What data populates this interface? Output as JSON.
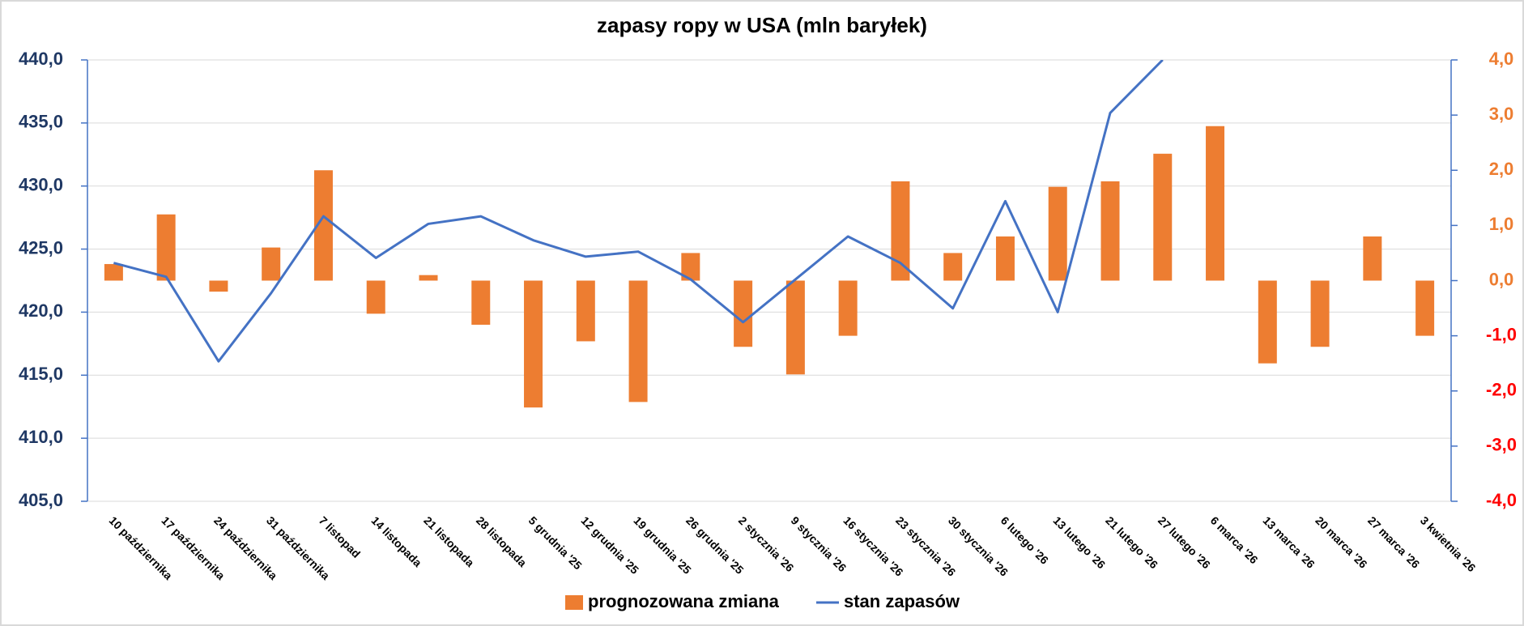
{
  "chart_data": {
    "type": "bar_line",
    "title": "zapasy ropy w USA (mln baryłek)",
    "categories": [
      "10 października",
      "17 października",
      "24 października",
      "31 października",
      "7 listopad",
      "14 listopada",
      "21 listopada",
      "28 listopada",
      "5 grudnia '25",
      "12 grudnia '25",
      "19 grudnia '25",
      "26 grudnia '25",
      "2 stycznia '26",
      "9 stycznia '26",
      "16 stycznia '26",
      "23 stycznia '26",
      "30 stycznia '26",
      "6 lutego '26",
      "13 lutego '26",
      "21 lutego '26",
      "27 lutego '26",
      "6 marca '26",
      "13 marca '26",
      "20 marca '26",
      "27 marca '26",
      "3 kwietnia '26"
    ],
    "series": [
      {
        "name": "prognozowana zmiana",
        "type": "bar",
        "axis": "y2",
        "color": "#ed7d31",
        "values": [
          0.3,
          1.2,
          -0.2,
          0.6,
          2.0,
          -0.6,
          0.1,
          -0.8,
          -2.3,
          -1.1,
          -2.2,
          0.5,
          -1.2,
          -1.7,
          -1.0,
          1.8,
          0.5,
          0.8,
          1.7,
          1.8,
          2.3,
          2.8,
          -1.5,
          -1.2,
          0.8,
          -1.0
        ]
      },
      {
        "name": "stan zapasów",
        "type": "line",
        "axis": "y",
        "color": "#4472c4",
        "values": [
          423.9,
          422.8,
          416.1,
          421.5,
          427.6,
          424.3,
          427.0,
          427.6,
          425.7,
          424.4,
          424.8,
          422.6,
          419.2,
          422.6,
          426.0,
          423.9,
          420.3,
          428.8,
          420.0,
          435.8,
          440.0,
          null,
          null,
          null,
          null,
          null
        ]
      }
    ],
    "ylim": [
      405,
      440
    ],
    "yticks": [
      {
        "value": 405,
        "label": "405,0"
      },
      {
        "value": 410,
        "label": "410,0"
      },
      {
        "value": 415,
        "label": "415,0"
      },
      {
        "value": 420,
        "label": "420,0"
      },
      {
        "value": 425,
        "label": "425,0"
      },
      {
        "value": 430,
        "label": "430,0"
      },
      {
        "value": 435,
        "label": "435,0"
      },
      {
        "value": 440,
        "label": "440,0"
      }
    ],
    "y2lim": [
      -4,
      4
    ],
    "y2ticks": [
      {
        "value": -4,
        "label": "-4,0"
      },
      {
        "value": -3,
        "label": "-3,0"
      },
      {
        "value": -2,
        "label": "-2,0"
      },
      {
        "value": -1,
        "label": "-1,0"
      },
      {
        "value": 0,
        "label": "0,0"
      },
      {
        "value": 1,
        "label": "1,0"
      },
      {
        "value": 2,
        "label": "2,0"
      },
      {
        "value": 3,
        "label": "3,0"
      },
      {
        "value": 4,
        "label": "4,0"
      }
    ],
    "grid": true,
    "legend": "bottom"
  }
}
